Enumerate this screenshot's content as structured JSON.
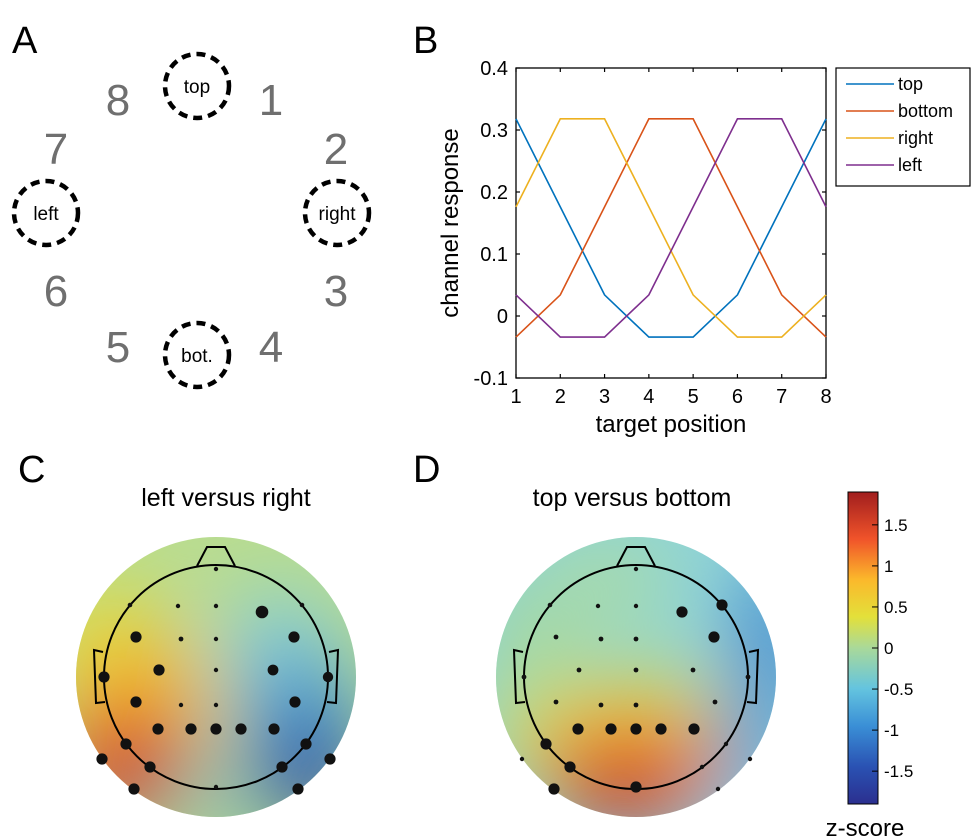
{
  "panels": {
    "a": {
      "letter": "A",
      "position_numbers": [
        "1",
        "2",
        "3",
        "4",
        "5",
        "6",
        "7",
        "8"
      ],
      "locations": {
        "top": "top",
        "right": "right",
        "bottom": "bot.",
        "left": "left"
      }
    },
    "b": {
      "letter": "B"
    },
    "c": {
      "letter": "C",
      "title": "left versus right"
    },
    "d": {
      "letter": "D",
      "title": "top versus bottom"
    }
  },
  "colorbar": {
    "title": "z-score",
    "ticks": [
      "1.5",
      "1",
      "0.5",
      "0",
      "-0.5",
      "-1",
      "-1.5"
    ],
    "tick_values": [
      1.5,
      1,
      0.5,
      0,
      -0.5,
      -1,
      -1.5
    ],
    "range": [
      -1.9,
      1.9
    ],
    "colormap": "jet"
  },
  "chart_data": [
    {
      "type": "line",
      "xlabel": "target position",
      "ylabel": "channel response",
      "x": [
        1,
        2,
        3,
        4,
        5,
        6,
        7,
        8
      ],
      "xticks": [
        "1",
        "2",
        "3",
        "4",
        "5",
        "6",
        "7",
        "8"
      ],
      "yticks": [
        "0.4",
        "0.3",
        "0.2",
        "0.1",
        "0",
        "-0.1"
      ],
      "ytick_values": [
        0.4,
        0.3,
        0.2,
        0.1,
        0,
        -0.1
      ],
      "xlim": [
        1,
        8
      ],
      "ylim": [
        -0.1,
        0.4
      ],
      "grid": false,
      "legend_position": "outside-top-right",
      "series": [
        {
          "name": "top",
          "color": "#0072BD",
          "values": [
            0.318,
            0.176,
            0.034,
            -0.034,
            -0.034,
            0.034,
            0.176,
            0.318
          ]
        },
        {
          "name": "bottom",
          "color": "#D95319",
          "values": [
            -0.034,
            0.034,
            0.176,
            0.318,
            0.318,
            0.176,
            0.034,
            -0.034
          ]
        },
        {
          "name": "right",
          "color": "#EDB120",
          "values": [
            0.176,
            0.318,
            0.318,
            0.176,
            0.034,
            -0.034,
            -0.034,
            0.034
          ]
        },
        {
          "name": "left",
          "color": "#7E2F8E",
          "values": [
            0.034,
            -0.034,
            -0.034,
            0.034,
            0.176,
            0.318,
            0.318,
            0.176
          ]
        }
      ]
    },
    {
      "type": "heatmap",
      "title": "left versus right",
      "description_of_map": "scalp topography",
      "blobs": [
        {
          "region": "left-posterior",
          "z": 1.8
        },
        {
          "region": "left-central",
          "z": 0.8
        },
        {
          "region": "right-posterior",
          "z": -1.8
        },
        {
          "region": "right-central",
          "z": -0.9
        }
      ],
      "baseline_z": 0.1
    },
    {
      "type": "heatmap",
      "title": "top versus bottom",
      "blobs": [
        {
          "region": "posterior-midline",
          "z": 1.9
        },
        {
          "region": "central",
          "z": 0.4
        },
        {
          "region": "right-lateral",
          "z": -1.2
        },
        {
          "region": "left-lateral",
          "z": -0.4
        }
      ],
      "baseline_z": -0.35
    }
  ]
}
